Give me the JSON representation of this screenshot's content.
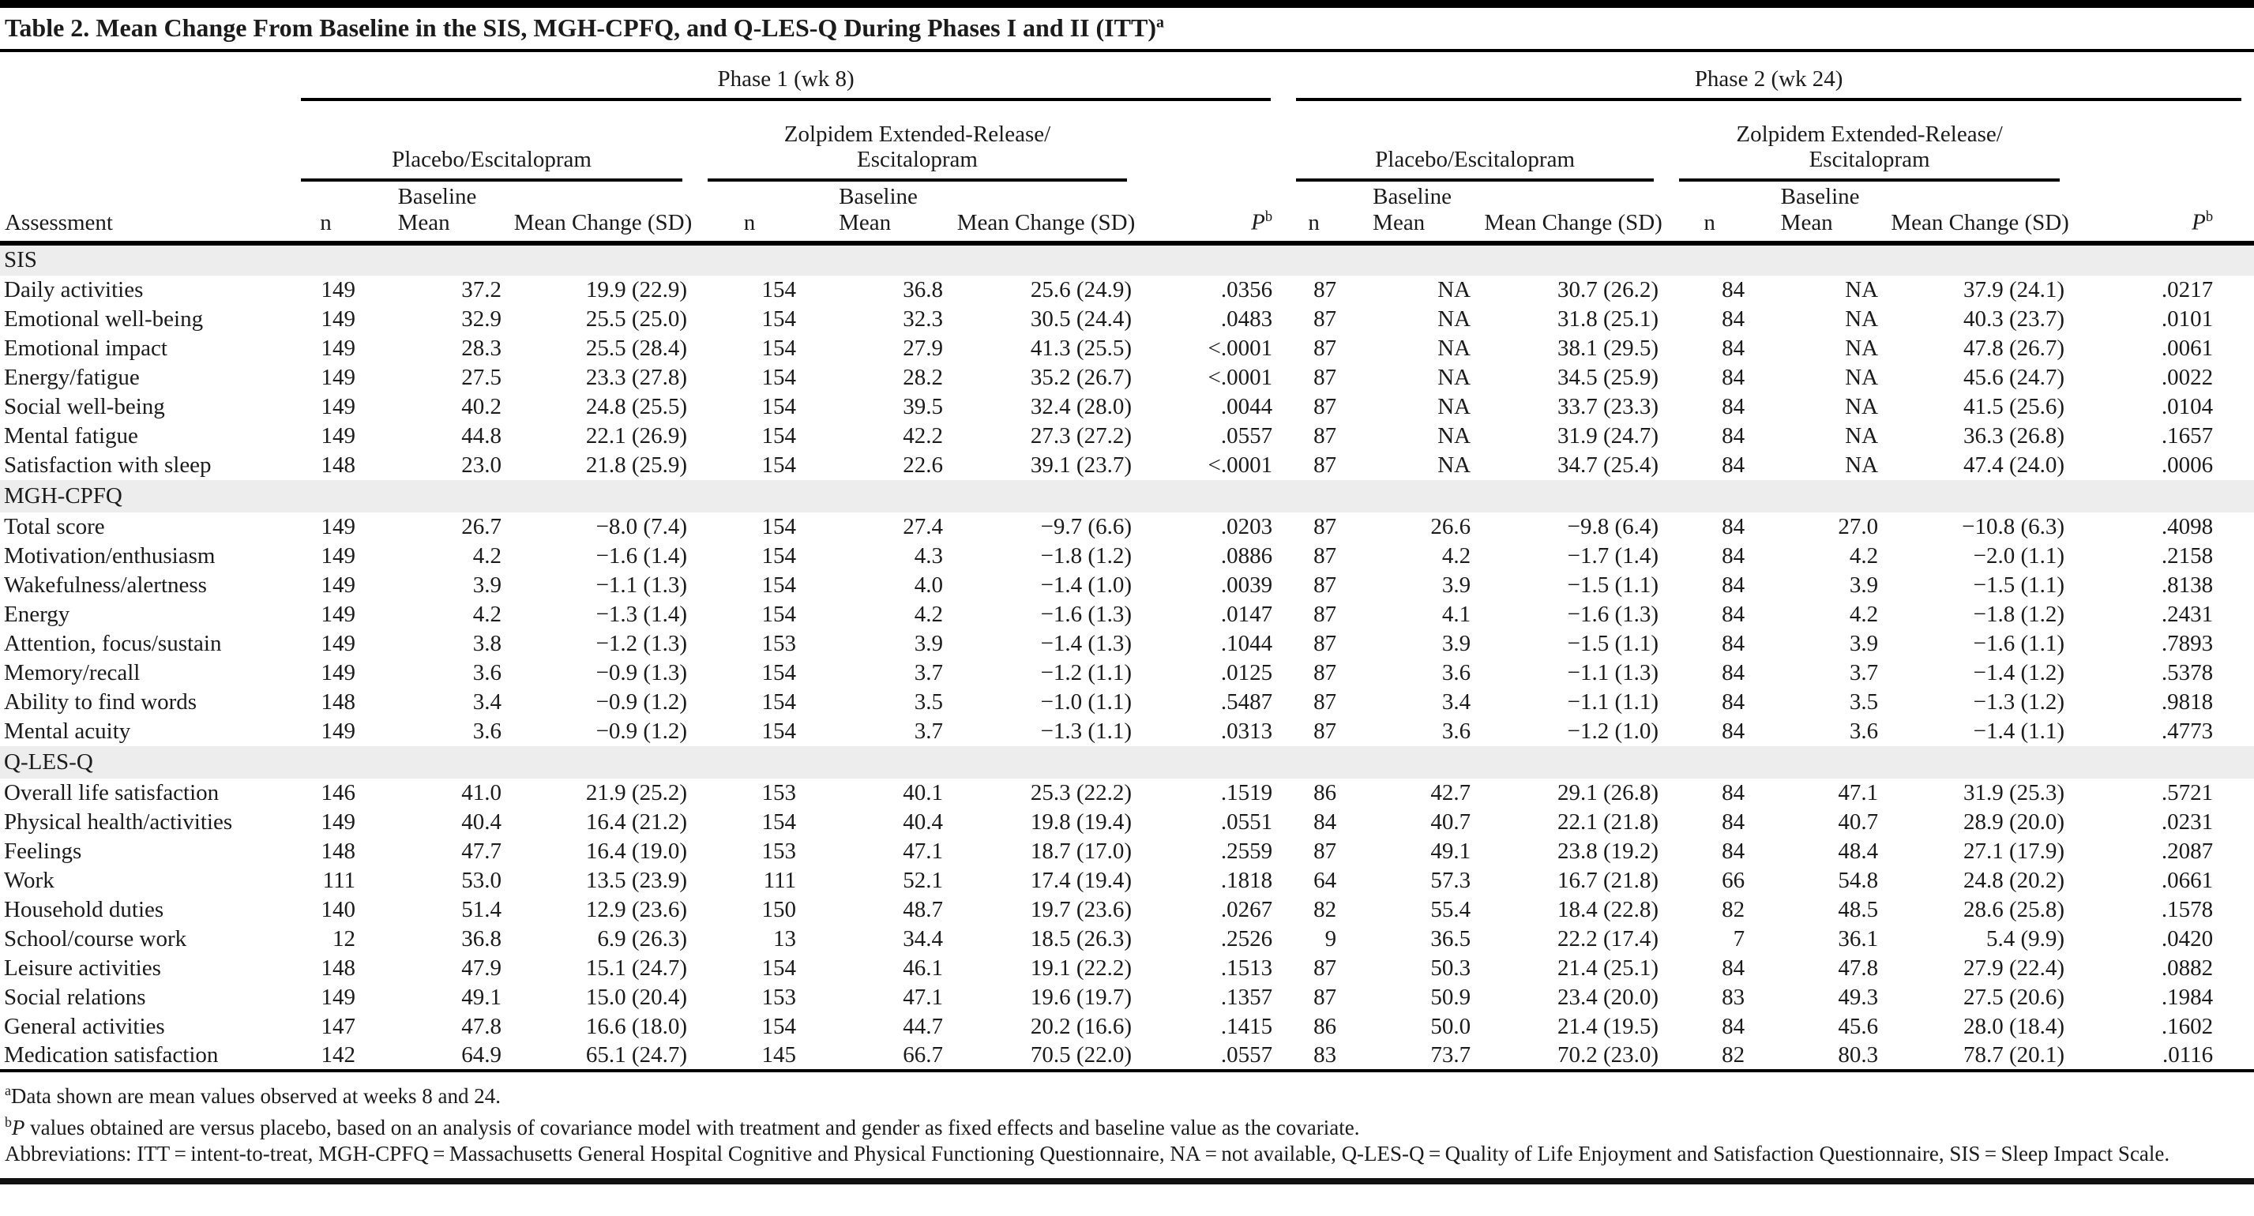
{
  "title": {
    "text": "Table 2. Mean Change From Baseline in the SIS, MGH-CPFQ, and Q-LES-Q During Phases I and II (ITT)",
    "sup": "a"
  },
  "header": {
    "assessment": "Assessment",
    "phase1": "Phase 1 (wk 8)",
    "phase2": "Phase 2 (wk 24)",
    "group_placebo": "Placebo/Escitalopram",
    "group_zolpidem_line1": "Zolpidem Extended-Release/",
    "group_zolpidem_line2": "Escitalopram",
    "col_n": "n",
    "col_baseline": "Baseline",
    "col_mean": "Mean",
    "col_mean_change": "Mean Change (SD)",
    "col_p": "P",
    "col_p_sup": "b"
  },
  "sections": [
    {
      "name": "SIS",
      "rows": [
        {
          "label": "Daily activities",
          "cells": [
            "149",
            "37.2",
            "19.9 (22.9)",
            "154",
            "36.8",
            "25.6 (24.9)",
            ".0356",
            "87",
            "NA",
            "30.7 (26.2)",
            "84",
            "NA",
            "37.9 (24.1)",
            ".0217"
          ]
        },
        {
          "label": "Emotional well-being",
          "cells": [
            "149",
            "32.9",
            "25.5 (25.0)",
            "154",
            "32.3",
            "30.5 (24.4)",
            ".0483",
            "87",
            "NA",
            "31.8 (25.1)",
            "84",
            "NA",
            "40.3 (23.7)",
            ".0101"
          ]
        },
        {
          "label": "Emotional impact",
          "cells": [
            "149",
            "28.3",
            "25.5 (28.4)",
            "154",
            "27.9",
            "41.3 (25.5)",
            "<.0001",
            "87",
            "NA",
            "38.1 (29.5)",
            "84",
            "NA",
            "47.8 (26.7)",
            ".0061"
          ]
        },
        {
          "label": "Energy/fatigue",
          "cells": [
            "149",
            "27.5",
            "23.3 (27.8)",
            "154",
            "28.2",
            "35.2 (26.7)",
            "<.0001",
            "87",
            "NA",
            "34.5 (25.9)",
            "84",
            "NA",
            "45.6 (24.7)",
            ".0022"
          ]
        },
        {
          "label": "Social well-being",
          "cells": [
            "149",
            "40.2",
            "24.8 (25.5)",
            "154",
            "39.5",
            "32.4 (28.0)",
            ".0044",
            "87",
            "NA",
            "33.7 (23.3)",
            "84",
            "NA",
            "41.5 (25.6)",
            ".0104"
          ]
        },
        {
          "label": "Mental fatigue",
          "cells": [
            "149",
            "44.8",
            "22.1 (26.9)",
            "154",
            "42.2",
            "27.3 (27.2)",
            ".0557",
            "87",
            "NA",
            "31.9 (24.7)",
            "84",
            "NA",
            "36.3 (26.8)",
            ".1657"
          ]
        },
        {
          "label": "Satisfaction with sleep",
          "cells": [
            "148",
            "23.0",
            "21.8 (25.9)",
            "154",
            "22.6",
            "39.1 (23.7)",
            "<.0001",
            "87",
            "NA",
            "34.7 (25.4)",
            "84",
            "NA",
            "47.4 (24.0)",
            ".0006"
          ]
        }
      ]
    },
    {
      "name": "MGH-CPFQ",
      "rows": [
        {
          "label": "Total score",
          "cells": [
            "149",
            "26.7",
            "−8.0 (7.4)",
            "154",
            "27.4",
            "−9.7 (6.6)",
            ".0203",
            "87",
            "26.6",
            "−9.8 (6.4)",
            "84",
            "27.0",
            "−10.8 (6.3)",
            ".4098"
          ]
        },
        {
          "label": "Motivation/enthusiasm",
          "cells": [
            "149",
            "4.2",
            "−1.6 (1.4)",
            "154",
            "4.3",
            "−1.8 (1.2)",
            ".0886",
            "87",
            "4.2",
            "−1.7 (1.4)",
            "84",
            "4.2",
            "−2.0 (1.1)",
            ".2158"
          ]
        },
        {
          "label": "Wakefulness/alertness",
          "cells": [
            "149",
            "3.9",
            "−1.1 (1.3)",
            "154",
            "4.0",
            "−1.4 (1.0)",
            ".0039",
            "87",
            "3.9",
            "−1.5 (1.1)",
            "84",
            "3.9",
            "−1.5 (1.1)",
            ".8138"
          ]
        },
        {
          "label": "Energy",
          "cells": [
            "149",
            "4.2",
            "−1.3 (1.4)",
            "154",
            "4.2",
            "−1.6 (1.3)",
            ".0147",
            "87",
            "4.1",
            "−1.6 (1.3)",
            "84",
            "4.2",
            "−1.8 (1.2)",
            ".2431"
          ]
        },
        {
          "label": "Attention, focus/sustain",
          "cells": [
            "149",
            "3.8",
            "−1.2 (1.3)",
            "153",
            "3.9",
            "−1.4 (1.3)",
            ".1044",
            "87",
            "3.9",
            "−1.5 (1.1)",
            "84",
            "3.9",
            "−1.6 (1.1)",
            ".7893"
          ]
        },
        {
          "label": "Memory/recall",
          "cells": [
            "149",
            "3.6",
            "−0.9 (1.3)",
            "154",
            "3.7",
            "−1.2 (1.1)",
            ".0125",
            "87",
            "3.6",
            "−1.1 (1.3)",
            "84",
            "3.7",
            "−1.4 (1.2)",
            ".5378"
          ]
        },
        {
          "label": "Ability to find words",
          "cells": [
            "148",
            "3.4",
            "−0.9 (1.2)",
            "154",
            "3.5",
            "−1.0 (1.1)",
            ".5487",
            "87",
            "3.4",
            "−1.1 (1.1)",
            "84",
            "3.5",
            "−1.3 (1.2)",
            ".9818"
          ]
        },
        {
          "label": "Mental acuity",
          "cells": [
            "149",
            "3.6",
            "−0.9 (1.2)",
            "154",
            "3.7",
            "−1.3 (1.1)",
            ".0313",
            "87",
            "3.6",
            "−1.2 (1.0)",
            "84",
            "3.6",
            "−1.4 (1.1)",
            ".4773"
          ]
        }
      ]
    },
    {
      "name": "Q-LES-Q",
      "rows": [
        {
          "label": "Overall life satisfaction",
          "cells": [
            "146",
            "41.0",
            "21.9 (25.2)",
            "153",
            "40.1",
            "25.3 (22.2)",
            ".1519",
            "86",
            "42.7",
            "29.1 (26.8)",
            "84",
            "47.1",
            "31.9 (25.3)",
            ".5721"
          ]
        },
        {
          "label": "Physical health/activities",
          "cells": [
            "149",
            "40.4",
            "16.4 (21.2)",
            "154",
            "40.4",
            "19.8 (19.4)",
            ".0551",
            "84",
            "40.7",
            "22.1 (21.8)",
            "84",
            "40.7",
            "28.9 (20.0)",
            ".0231"
          ]
        },
        {
          "label": "Feelings",
          "cells": [
            "148",
            "47.7",
            "16.4 (19.0)",
            "153",
            "47.1",
            "18.7 (17.0)",
            ".2559",
            "87",
            "49.1",
            "23.8 (19.2)",
            "84",
            "48.4",
            "27.1 (17.9)",
            ".2087"
          ]
        },
        {
          "label": "Work",
          "cells": [
            "111",
            "53.0",
            "13.5 (23.9)",
            "111",
            "52.1",
            "17.4 (19.4)",
            ".1818",
            "64",
            "57.3",
            "16.7 (21.8)",
            "66",
            "54.8",
            "24.8 (20.2)",
            ".0661"
          ]
        },
        {
          "label": "Household duties",
          "cells": [
            "140",
            "51.4",
            "12.9 (23.6)",
            "150",
            "48.7",
            "19.7 (23.6)",
            ".0267",
            "82",
            "55.4",
            "18.4 (22.8)",
            "82",
            "48.5",
            "28.6 (25.8)",
            ".1578"
          ]
        },
        {
          "label": "School/course work",
          "cells": [
            "12",
            "36.8",
            "6.9 (26.3)",
            "13",
            "34.4",
            "18.5 (26.3)",
            ".2526",
            "9",
            "36.5",
            "22.2 (17.4)",
            "7",
            "36.1",
            "5.4 (9.9)",
            ".0420"
          ]
        },
        {
          "label": "Leisure activities",
          "cells": [
            "148",
            "47.9",
            "15.1 (24.7)",
            "154",
            "46.1",
            "19.1 (22.2)",
            ".1513",
            "87",
            "50.3",
            "21.4 (25.1)",
            "84",
            "47.8",
            "27.9 (22.4)",
            ".0882"
          ]
        },
        {
          "label": "Social relations",
          "cells": [
            "149",
            "49.1",
            "15.0 (20.4)",
            "153",
            "47.1",
            "19.6 (19.7)",
            ".1357",
            "87",
            "50.9",
            "23.4 (20.0)",
            "83",
            "49.3",
            "27.5 (20.6)",
            ".1984"
          ]
        },
        {
          "label": "General activities",
          "cells": [
            "147",
            "47.8",
            "16.6 (18.0)",
            "154",
            "44.7",
            "20.2 (16.6)",
            ".1415",
            "86",
            "50.0",
            "21.4 (19.5)",
            "84",
            "45.6",
            "28.0 (18.4)",
            ".1602"
          ]
        },
        {
          "label": "Medication satisfaction",
          "cells": [
            "142",
            "64.9",
            "65.1 (24.7)",
            "145",
            "66.7",
            "70.5 (22.0)",
            ".0557",
            "83",
            "73.7",
            "70.2 (23.0)",
            "82",
            "80.3",
            "78.7 (20.1)",
            ".0116"
          ]
        }
      ]
    }
  ],
  "footnotes": {
    "a_sup": "a",
    "a_text": "Data shown are mean values observed at weeks 8 and 24.",
    "b_sup": "b",
    "b_italic": "P",
    "b_text": " values obtained are versus placebo, based on an analysis of covariance model with treatment and gender as fixed effects and baseline value as the covariate.",
    "abbreviations": "Abbreviations: ITT = intent-to-treat, MGH-CPFQ = Massachusetts General Hospital Cognitive and Physical Functioning Questionnaire, NA = not available, Q-LES-Q = Quality of Life Enjoyment and Satisfaction Questionnaire, SIS = Sleep Impact Scale."
  },
  "colors": {
    "section_band": "#ededed",
    "text": "#1b1b1b",
    "rules": "#000000",
    "background": "#ffffff"
  }
}
